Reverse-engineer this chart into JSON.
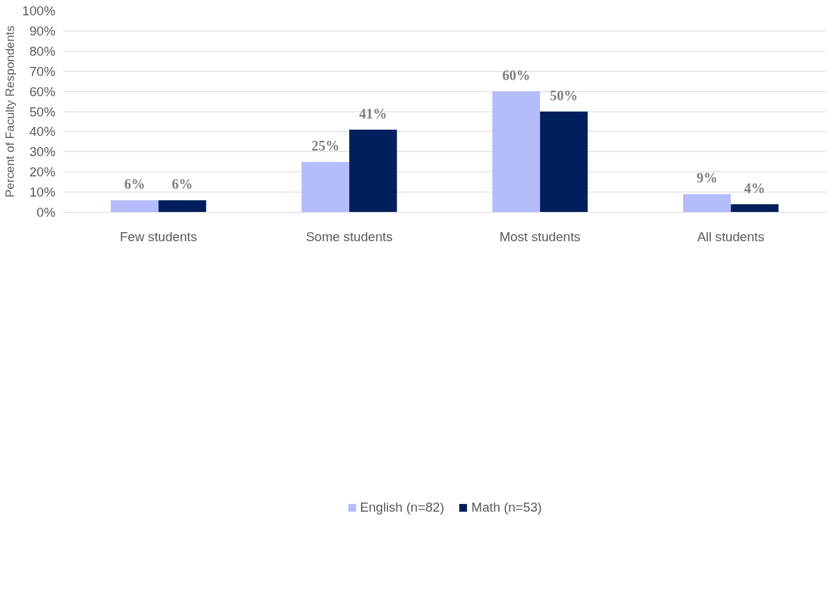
{
  "chart_data": {
    "type": "bar",
    "ylabel": "Percent of Faculty Respondents",
    "categories": [
      "Few students",
      "Some students",
      "Most students",
      "All students"
    ],
    "series": [
      {
        "name": "English (n=82)",
        "color": "#b4bcfc",
        "values": [
          6,
          25,
          60,
          9
        ],
        "value_labels": [
          "6%",
          "25%",
          "60%",
          "9%"
        ]
      },
      {
        "name": "Math (n=53)",
        "color": "#001f5c",
        "values": [
          6,
          41,
          50,
          4
        ],
        "value_labels": [
          "6%",
          "41%",
          "50%",
          "4%"
        ]
      }
    ],
    "ylim": [
      0,
      100
    ],
    "yticks": [
      {
        "value": 0,
        "label": "0%"
      },
      {
        "value": 10,
        "label": "10%"
      },
      {
        "value": 20,
        "label": "20%"
      },
      {
        "value": 30,
        "label": "30%"
      },
      {
        "value": 40,
        "label": "40%"
      },
      {
        "value": 50,
        "label": "50%"
      },
      {
        "value": 60,
        "label": "60%"
      },
      {
        "value": 70,
        "label": "70%"
      },
      {
        "value": 80,
        "label": "80%"
      },
      {
        "value": 90,
        "label": "90%"
      },
      {
        "value": 100,
        "label": "100%"
      }
    ],
    "grid": "y",
    "legend": "bottom"
  }
}
